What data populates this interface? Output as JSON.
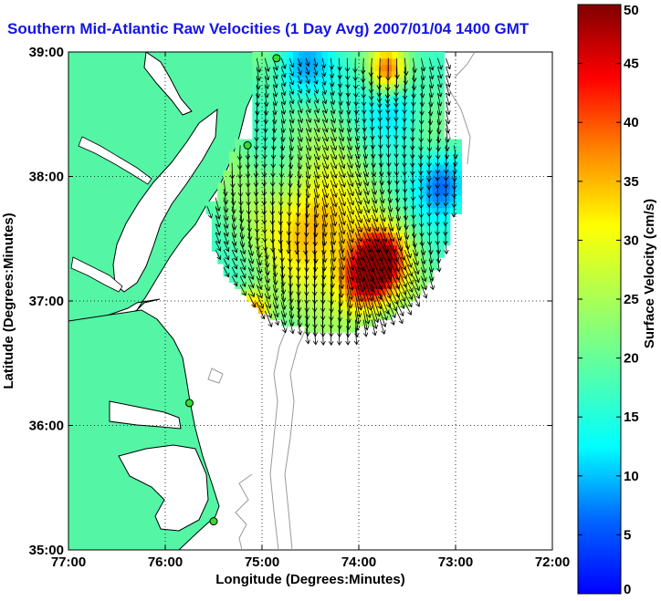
{
  "title": "Southern Mid-Atlantic Raw Velocities (1 Day Avg) 2007/01/04 1400 GMT",
  "colors": {
    "land": "#55f5a6",
    "coast": "#000000",
    "title": "#1515e6",
    "bathymetry": "#999999",
    "station": "#33dd33"
  },
  "chart_data": {
    "type": "heatmap",
    "subtype": "surface current vector map",
    "xlabel": "Longitude (Degrees:Minutes)",
    "ylabel": "Latitude (Degrees:Minutes)",
    "colorbar_label": "Surface Velocity (cm/s)",
    "xlim": [
      -77,
      -72
    ],
    "ylim": [
      35,
      39
    ],
    "x_ticks": [
      {
        "value": -77,
        "label": "77:00"
      },
      {
        "value": -76,
        "label": "76:00"
      },
      {
        "value": -75,
        "label": "75:00"
      },
      {
        "value": -74,
        "label": "74:00"
      },
      {
        "value": -73,
        "label": "73:00"
      },
      {
        "value": -72,
        "label": "72:00"
      }
    ],
    "y_ticks": [
      {
        "value": 35,
        "label": "35:00"
      },
      {
        "value": 36,
        "label": "36:00"
      },
      {
        "value": 37,
        "label": "37:00"
      },
      {
        "value": 38,
        "label": "38:00"
      },
      {
        "value": 39,
        "label": "39:00"
      }
    ],
    "colorbar_ticks": [
      0,
      5,
      10,
      15,
      20,
      25,
      30,
      35,
      40,
      45,
      50
    ],
    "colorbar_range": [
      0,
      50
    ],
    "grid": true,
    "colormap": "jet",
    "velocity_field": {
      "hotspots": [
        {
          "lon": -74.45,
          "lat": 37.6,
          "speed": 38,
          "sigma": 0.45
        },
        {
          "lon": -73.95,
          "lat": 37.15,
          "speed": 45,
          "sigma": 0.28
        },
        {
          "lon": -73.75,
          "lat": 37.35,
          "speed": 44,
          "sigma": 0.25
        },
        {
          "lon": -75.1,
          "lat": 36.9,
          "speed": 42,
          "sigma": 0.18
        },
        {
          "lon": -73.7,
          "lat": 38.85,
          "speed": 40,
          "sigma": 0.18
        }
      ],
      "slow_regions": [
        {
          "lon": -73.1,
          "lat": 37.95,
          "speed": 5,
          "sigma": 0.28
        },
        {
          "lon": -74.6,
          "lat": 38.85,
          "speed": 8,
          "sigma": 0.3
        },
        {
          "lon": -73.6,
          "lat": 38.6,
          "speed": 10,
          "sigma": 0.3
        }
      ],
      "background_speed": 20,
      "flow_direction": "southward to south-southwest"
    },
    "stations": [
      {
        "lon": -74.85,
        "lat": 38.95
      },
      {
        "lon": -75.15,
        "lat": 38.25
      },
      {
        "lon": -75.75,
        "lat": 36.18
      },
      {
        "lon": -75.5,
        "lat": 35.23
      }
    ]
  }
}
